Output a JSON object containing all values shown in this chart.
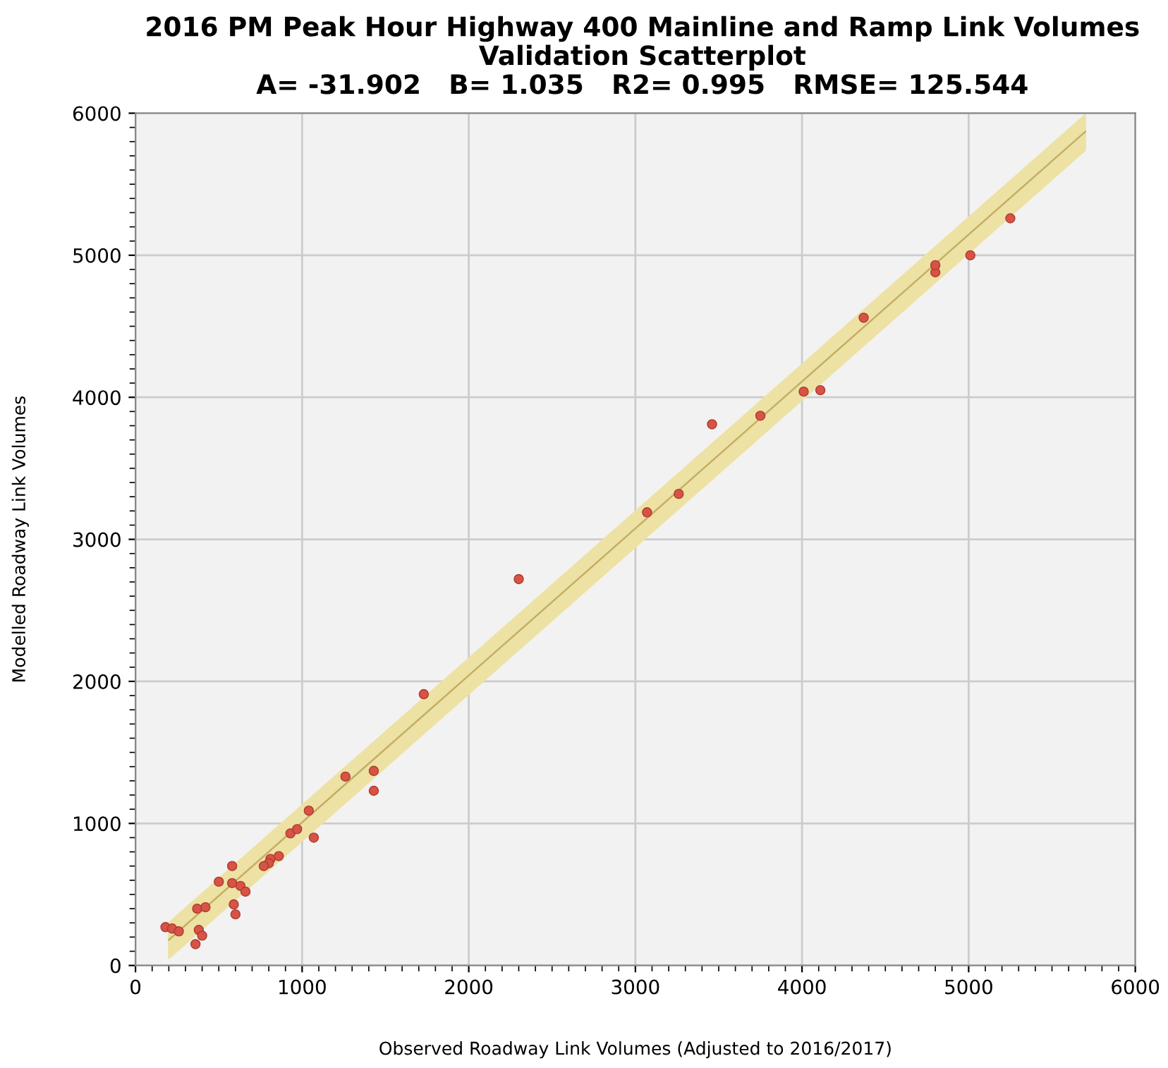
{
  "chart_data": {
    "type": "scatter",
    "title": "2016 PM Peak Hour Highway 400 Mainline and Ramp Link Volumes",
    "subtitle": "Validation Scatterplot",
    "annotations": [
      "A= -31.902   B= 1.035   R2= 0.995   RMSE= 125.544"
    ],
    "xlabel": "Observed Roadway Link Volumes (Adjusted to 2016/2017)",
    "ylabel": "Modelled Roadway Link Volumes",
    "xlim": [
      0,
      6000
    ],
    "ylim": [
      0,
      6000
    ],
    "xticks": [
      0,
      1000,
      2000,
      3000,
      4000,
      5000,
      6000
    ],
    "yticks": [
      0,
      1000,
      2000,
      3000,
      4000,
      5000,
      6000
    ],
    "grid": true,
    "legend": false,
    "series": [
      {
        "type": "line",
        "color": "#c4ae66",
        "line_style": "solid",
        "x": [
          200,
          5700
        ],
        "values": [
          180,
          5870
        ],
        "lower": [
          50,
          5740
        ],
        "upper": [
          300,
          5990
        ]
      },
      {
        "color": "#d65346",
        "marker": "circle",
        "x": [
          1730,
          1260,
          1430,
          1430,
          1040,
          1070,
          930,
          970,
          860,
          810,
          800,
          770,
          580,
          500,
          580,
          630,
          660,
          590,
          600,
          370,
          420,
          380,
          400,
          360,
          180,
          220,
          260,
          2300,
          3070,
          3260,
          3460,
          3750,
          4010,
          4110,
          4370,
          4800,
          4800,
          5010,
          5250
        ],
        "values": [
          1910,
          1330,
          1370,
          1230,
          1090,
          900,
          930,
          960,
          770,
          750,
          720,
          700,
          700,
          590,
          580,
          560,
          520,
          430,
          360,
          400,
          410,
          250,
          210,
          150,
          270,
          260,
          240,
          2720,
          3190,
          3320,
          3810,
          3870,
          4040,
          4050,
          4560,
          4880,
          4930,
          5000,
          5260
        ]
      }
    ]
  }
}
